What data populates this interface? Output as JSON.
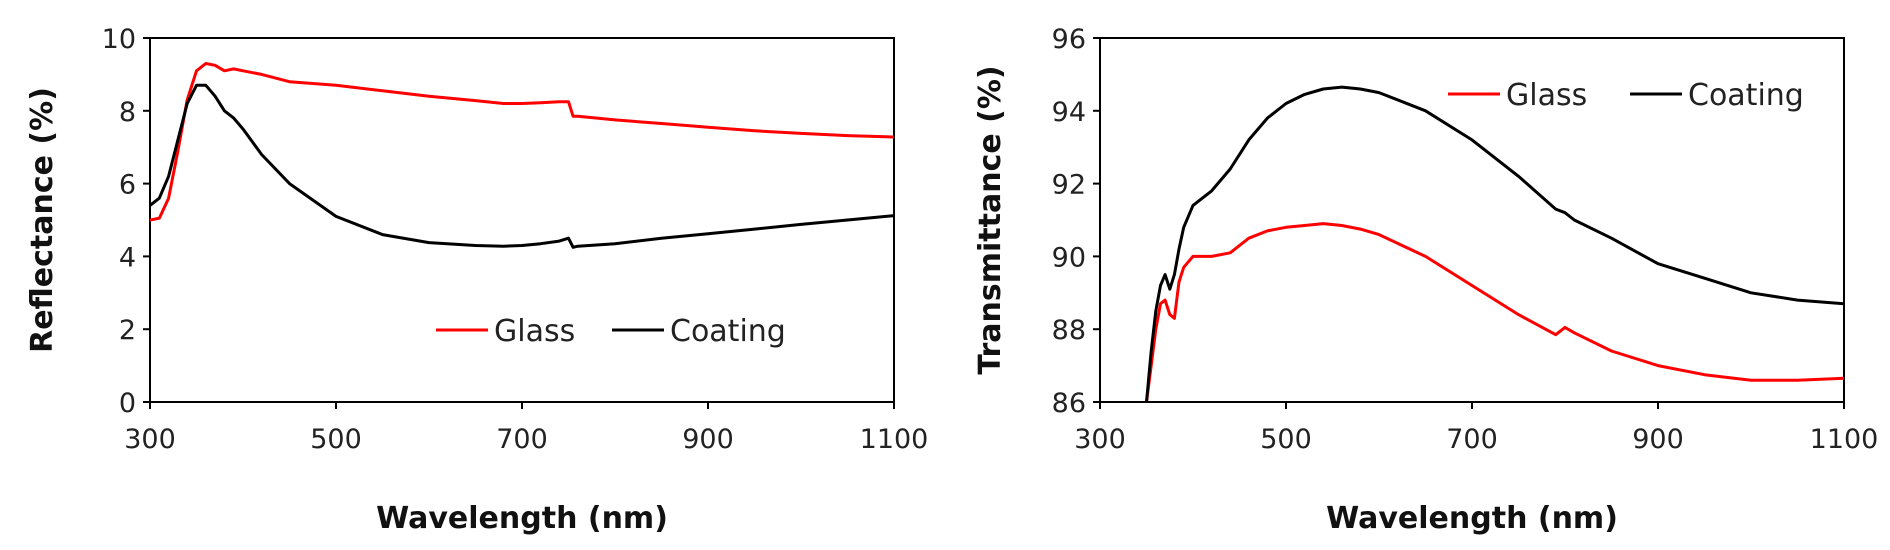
{
  "chart_data": [
    {
      "type": "line",
      "title": "",
      "xlabel": "Wavelength (nm)",
      "ylabel": "Reflectance (%)",
      "xlim": [
        300,
        1100
      ],
      "ylim": [
        0,
        10
      ],
      "xticks": [
        300,
        500,
        700,
        900,
        1100
      ],
      "yticks": [
        0,
        2,
        4,
        6,
        8,
        10
      ],
      "grid": false,
      "legend": "bottom-right",
      "series": [
        {
          "name": "Glass",
          "color": "#ff0000",
          "x": [
            300,
            310,
            320,
            330,
            340,
            350,
            360,
            370,
            380,
            390,
            400,
            420,
            450,
            500,
            550,
            600,
            650,
            680,
            700,
            720,
            740,
            750,
            755,
            760,
            800,
            850,
            900,
            950,
            1000,
            1050,
            1100
          ],
          "y": [
            5.0,
            5.05,
            5.6,
            6.9,
            8.3,
            9.1,
            9.3,
            9.25,
            9.1,
            9.15,
            9.1,
            9.0,
            8.8,
            8.7,
            8.55,
            8.4,
            8.28,
            8.2,
            8.2,
            8.22,
            8.25,
            8.25,
            7.85,
            7.85,
            7.75,
            7.65,
            7.55,
            7.45,
            7.38,
            7.32,
            7.28
          ]
        },
        {
          "name": "Coating",
          "color": "#000000",
          "x": [
            300,
            310,
            320,
            330,
            340,
            350,
            360,
            370,
            380,
            390,
            400,
            420,
            450,
            500,
            550,
            600,
            650,
            680,
            700,
            720,
            740,
            750,
            755,
            760,
            800,
            850,
            900,
            950,
            1000,
            1050,
            1100
          ],
          "y": [
            5.4,
            5.6,
            6.2,
            7.2,
            8.2,
            8.7,
            8.7,
            8.4,
            8.0,
            7.8,
            7.5,
            6.8,
            6.0,
            5.1,
            4.6,
            4.38,
            4.3,
            4.28,
            4.3,
            4.35,
            4.42,
            4.5,
            4.25,
            4.28,
            4.35,
            4.5,
            4.62,
            4.75,
            4.88,
            5.0,
            5.12
          ]
        }
      ]
    },
    {
      "type": "line",
      "title": "",
      "xlabel": "Wavelength (nm)",
      "ylabel": "Transmittance (%)",
      "xlim": [
        300,
        1100
      ],
      "ylim": [
        86,
        96
      ],
      "xticks": [
        300,
        500,
        700,
        900,
        1100
      ],
      "yticks": [
        86,
        88,
        90,
        92,
        94,
        96
      ],
      "grid": false,
      "legend": "top-right",
      "series": [
        {
          "name": "Glass",
          "color": "#ff0000",
          "x": [
            350,
            355,
            360,
            365,
            370,
            375,
            380,
            385,
            390,
            400,
            420,
            440,
            460,
            480,
            500,
            520,
            540,
            560,
            580,
            600,
            650,
            700,
            750,
            790,
            800,
            810,
            850,
            900,
            950,
            1000,
            1050,
            1100
          ],
          "y": [
            86.0,
            87.0,
            88.0,
            88.7,
            88.8,
            88.4,
            88.3,
            89.3,
            89.7,
            90.0,
            90.0,
            90.1,
            90.5,
            90.7,
            90.8,
            90.85,
            90.9,
            90.85,
            90.75,
            90.6,
            90.0,
            89.2,
            88.4,
            87.85,
            88.05,
            87.9,
            87.4,
            87.0,
            86.75,
            86.6,
            86.6,
            86.65
          ]
        },
        {
          "name": "Coating",
          "color": "#000000",
          "x": [
            350,
            355,
            360,
            365,
            370,
            375,
            380,
            385,
            390,
            400,
            420,
            440,
            460,
            480,
            500,
            520,
            540,
            560,
            580,
            600,
            650,
            700,
            750,
            790,
            800,
            810,
            850,
            900,
            950,
            1000,
            1050,
            1100
          ],
          "y": [
            86.0,
            87.4,
            88.5,
            89.2,
            89.5,
            89.1,
            89.5,
            90.2,
            90.8,
            91.4,
            91.8,
            92.4,
            93.2,
            93.8,
            94.2,
            94.45,
            94.6,
            94.65,
            94.6,
            94.5,
            94.0,
            93.2,
            92.2,
            91.3,
            91.2,
            91.0,
            90.5,
            89.8,
            89.4,
            89.0,
            88.8,
            88.7
          ]
        }
      ]
    }
  ]
}
